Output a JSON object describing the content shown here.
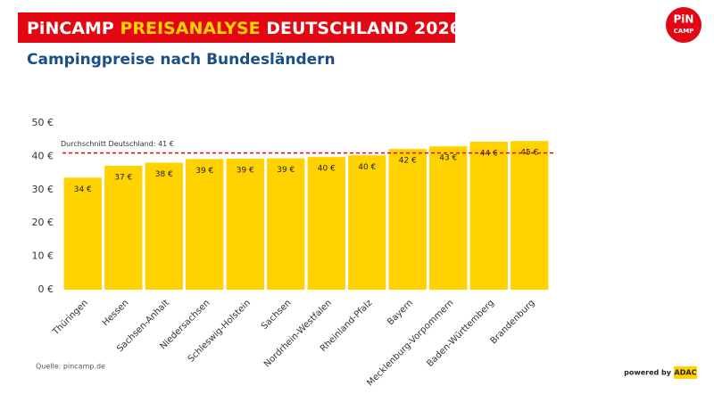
{
  "chart_data": {
    "type": "bar",
    "title_parts": [
      "PiNCAMP",
      "PREISANALYSE",
      "DEUTSCHLAND 2026"
    ],
    "subtitle": "Campingpreise nach Bundesländern",
    "categories": [
      "Thüringen",
      "Hessen",
      "Sachsen-Anhalt",
      "Niedersachsen",
      "Schleswig-Holstein",
      "Sachsen",
      "Nordrhein-Westfalen",
      "Rheinland-Pfalz",
      "Bayern",
      "Mecklenburg-Vorpommern",
      "Baden-Württemberg",
      "Brandenburg"
    ],
    "values": [
      33.6,
      37.2,
      38.1,
      39.2,
      39.3,
      39.4,
      39.8,
      40.3,
      42.2,
      43.0,
      44.4,
      44.6
    ],
    "value_labels": [
      "34 €",
      "37 €",
      "38 €",
      "39 €",
      "39 €",
      "39 €",
      "40 €",
      "40 €",
      "42 €",
      "43 €",
      "44 €",
      "45 €"
    ],
    "color": "#ffd200",
    "ylim": [
      0,
      50
    ],
    "yticks": [
      {
        "value": 0,
        "label": "0 €"
      },
      {
        "value": 10,
        "label": "10 €"
      },
      {
        "value": 20,
        "label": "20 €"
      },
      {
        "value": 30,
        "label": "30 €"
      },
      {
        "value": 40,
        "label": "40 €"
      },
      {
        "value": 50,
        "label": "50 €"
      }
    ],
    "average": {
      "value": 41,
      "label": "Durchschnitt Deutschland: 41 €",
      "color": "#e30613"
    },
    "source": "Quelle: pincamp.de",
    "powered_by": "powered by",
    "adac": "ADAC",
    "logo": [
      "PiN",
      "CAMP"
    ]
  }
}
